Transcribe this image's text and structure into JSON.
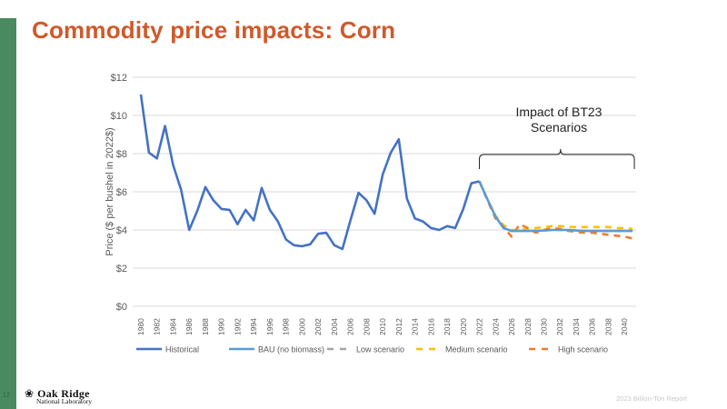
{
  "slide": {
    "title": "Commodity price impacts: Corn",
    "page_number": "17",
    "footer": "2023 Billion-Ton Report",
    "logo": {
      "name": "Oak Ridge",
      "subtitle": "National Laboratory",
      "icon": "oak-leaf-icon"
    },
    "colors": {
      "title": "#d0592a",
      "sidebar": "#4a8a60"
    }
  },
  "chart_data": {
    "type": "line",
    "title": "",
    "xlabel": "",
    "ylabel": "Price ($ per bushel in 2022$)",
    "ylim": [
      0,
      12
    ],
    "yticks": [
      "$0",
      "$2",
      "$4",
      "$6",
      "$8",
      "$10",
      "$12"
    ],
    "ytick_values": [
      0,
      2,
      4,
      6,
      8,
      10,
      12
    ],
    "xtick_labels": [
      "1980",
      "1982",
      "1984",
      "1986",
      "1988",
      "1990",
      "1992",
      "1994",
      "1996",
      "1998",
      "2000",
      "2002",
      "2004",
      "2006",
      "2008",
      "2010",
      "2012",
      "2014",
      "2016",
      "2018",
      "2020",
      "2022",
      "2024",
      "2026",
      "2028",
      "2030",
      "2032",
      "2034",
      "2036",
      "2038",
      "2040"
    ],
    "x_start": 1980,
    "x_end": 2041,
    "grid": true,
    "legend_position": "bottom",
    "annotation": {
      "text_line1": "Impact of BT23",
      "text_line2": "Scenarios",
      "from": 2022,
      "to": 2041
    },
    "series": [
      {
        "name": "Historical",
        "color": "#4472c4",
        "dash": "solid",
        "start": 1980,
        "values": [
          11.1,
          8.05,
          7.75,
          9.45,
          7.4,
          6.1,
          4.0,
          5.0,
          6.25,
          5.55,
          5.1,
          5.05,
          4.3,
          5.05,
          4.5,
          6.2,
          5.05,
          4.45,
          3.5,
          3.2,
          3.15,
          3.25,
          3.8,
          3.85,
          3.2,
          3.0,
          4.5,
          5.95,
          5.55,
          4.85,
          6.9,
          8.05,
          8.75,
          5.65,
          4.6,
          4.45,
          4.1,
          4.0,
          4.2,
          4.1,
          5.1,
          6.45,
          6.55
        ]
      },
      {
        "name": "BAU (no biomass)",
        "color": "#5b9bd5",
        "dash": "solid",
        "start": 2022,
        "values": [
          6.55,
          5.6,
          4.7,
          4.1,
          3.95,
          3.95,
          3.95,
          3.95,
          3.97,
          4.0,
          4.0,
          4.0,
          3.97,
          3.95,
          3.95,
          3.95,
          3.95,
          3.95,
          3.95,
          3.95
        ]
      },
      {
        "name": "Low scenario",
        "color": "#a5a5a5",
        "dash": "dashed",
        "start": 2022,
        "values": [
          6.55,
          5.6,
          4.7,
          4.1,
          3.95,
          3.95,
          3.95,
          3.95,
          3.97,
          4.0,
          4.0,
          4.0,
          3.97,
          3.95,
          3.95,
          3.95,
          3.95,
          3.95,
          3.95,
          3.95
        ]
      },
      {
        "name": "Medium scenario",
        "color": "#ffc000",
        "dash": "dashed",
        "start": 2022,
        "values": [
          6.55,
          5.6,
          4.75,
          4.25,
          4.0,
          4.0,
          4.05,
          4.1,
          4.15,
          4.2,
          4.2,
          4.15,
          4.15,
          4.15,
          4.15,
          4.15,
          4.15,
          4.1,
          4.1,
          4.05
        ]
      },
      {
        "name": "High scenario",
        "color": "#ed7d31",
        "dash": "dashed",
        "start": 2022,
        "values": [
          6.55,
          5.55,
          4.6,
          4.15,
          3.65,
          4.3,
          4.1,
          3.85,
          4.0,
          4.1,
          4.05,
          3.95,
          3.9,
          3.85,
          3.85,
          3.8,
          3.75,
          3.7,
          3.65,
          3.55
        ]
      }
    ]
  }
}
